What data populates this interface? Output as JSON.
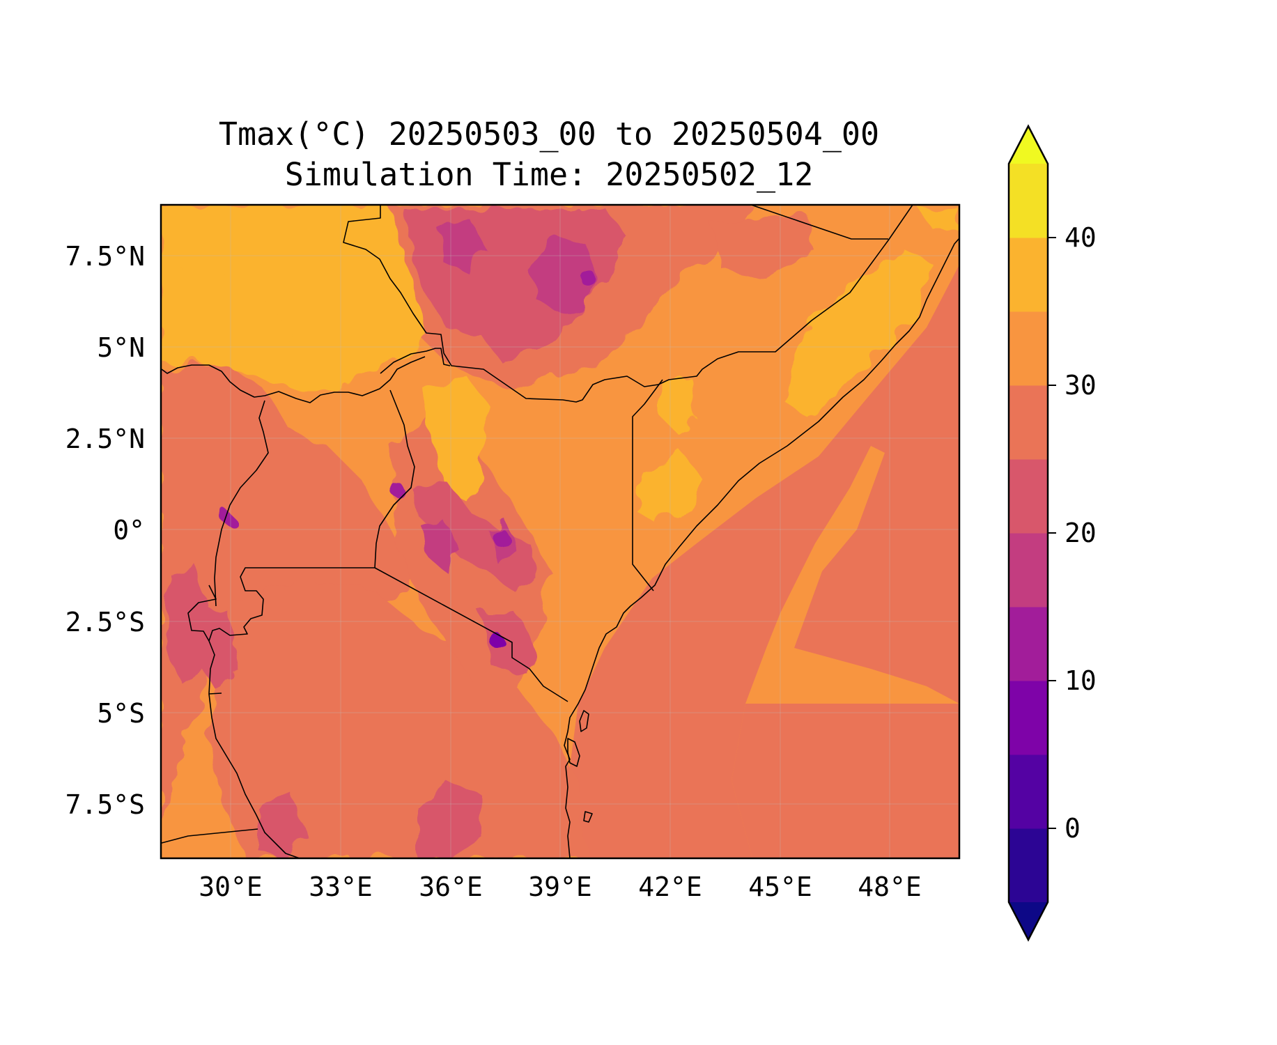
{
  "title": {
    "line1": "Tmax(°C) 20250503_00 to 20250504_00",
    "line2": "Simulation Time: 20250502_12"
  },
  "map": {
    "variable": "Tmax",
    "units": "°C",
    "lon_range": [
      27.7,
      49.5
    ],
    "lat_range": [
      -9.0,
      8.8
    ],
    "lon_ticks": [
      "30°E",
      "33°E",
      "36°E",
      "39°E",
      "42°E",
      "45°E",
      "48°E"
    ],
    "lat_ticks": [
      "7.5°N",
      "5°N",
      "2.5°N",
      "0°",
      "2.5°S",
      "5°S",
      "7.5°S"
    ],
    "gridlines": true
  },
  "colorbar": {
    "ticks": [
      "0",
      "10",
      "20",
      "30",
      "40"
    ],
    "levels": [
      -5,
      0,
      5,
      10,
      15,
      20,
      25,
      30,
      35,
      40,
      45
    ],
    "extend": "both",
    "colors": [
      "#0d0887",
      "#2c0594",
      "#5402a3",
      "#7e03a8",
      "#a21d9a",
      "#c33d80",
      "#d8576b",
      "#ea7457",
      "#f89540",
      "#fbb32f",
      "#f4e025",
      "#f0f921"
    ]
  },
  "colors": {
    "band_25_30": "#ea7457",
    "band_30_35": "#f89540",
    "band_35_40": "#fbb32f",
    "band_20_25": "#d8576b",
    "band_15_20": "#c33d80",
    "band_10_15": "#a21d9a",
    "band_5_10": "#7e03a8"
  }
}
